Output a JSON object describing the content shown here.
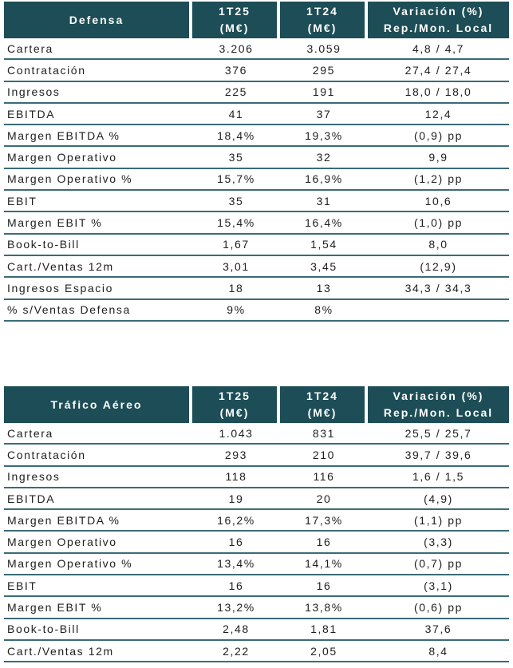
{
  "defensa": {
    "header": [
      "Defensa",
      "1T25",
      "(M€)",
      "1T24",
      "(M€)",
      "Variación (%)",
      "Rep./Mon. Local"
    ],
    "rows": [
      [
        "Cartera",
        "3.206",
        "3.059",
        "4,8 / 4,7"
      ],
      [
        "Contratación",
        "376",
        "295",
        "27,4 / 27,4"
      ],
      [
        "Ingresos",
        "225",
        "191",
        "18,0 / 18,0"
      ],
      [
        "EBITDA",
        "41",
        "37",
        "12,4"
      ],
      [
        "Margen EBITDA %",
        "18,4%",
        "19,3%",
        "(0,9) pp"
      ],
      [
        "Margen Operativo",
        "35",
        "32",
        "9,9"
      ],
      [
        "Margen Operativo %",
        "15,7%",
        "16,9%",
        "(1,2) pp"
      ],
      [
        "EBIT",
        "35",
        "31",
        "10,6"
      ],
      [
        "Margen EBIT %",
        "15,4%",
        "16,4%",
        "(1,0) pp"
      ],
      [
        "Book-to-Bill",
        "1,67",
        "1,54",
        "8,0"
      ],
      [
        "Cart./Ventas 12m",
        "3,01",
        "3,45",
        "(12,9)"
      ],
      [
        "Ingresos Espacio",
        "18",
        "13",
        "34,3 / 34,3"
      ],
      [
        "% s/Ventas Defensa",
        "9%",
        "8%",
        ""
      ]
    ]
  },
  "trafico": {
    "header": [
      "Tráfico Aéreo",
      "1T25",
      "(M€)",
      "1T24",
      "(M€)",
      "Variación (%)",
      "Rep./Mon. Local"
    ],
    "rows": [
      [
        "Cartera",
        "1.043",
        "831",
        "25,5 / 25,7"
      ],
      [
        "Contratación",
        "293",
        "210",
        "39,7 / 39,6"
      ],
      [
        "Ingresos",
        "118",
        "116",
        "1,6 / 1,5"
      ],
      [
        "EBITDA",
        "19",
        "20",
        "(4,9)"
      ],
      [
        "Margen EBITDA %",
        "16,2%",
        "17,3%",
        "(1,1) pp"
      ],
      [
        "Margen Operativo",
        "16",
        "16",
        "(3,3)"
      ],
      [
        "Margen Operativo %",
        "13,4%",
        "14,1%",
        "(0,7) pp"
      ],
      [
        "EBIT",
        "16",
        "16",
        "(3,1)"
      ],
      [
        "Margen EBIT %",
        "13,2%",
        "13,8%",
        "(0,6) pp"
      ],
      [
        "Book-to-Bill",
        "2,48",
        "1,81",
        "37,6"
      ],
      [
        "Cart./Ventas 12m",
        "2,22",
        "2,05",
        "8,4"
      ]
    ]
  }
}
